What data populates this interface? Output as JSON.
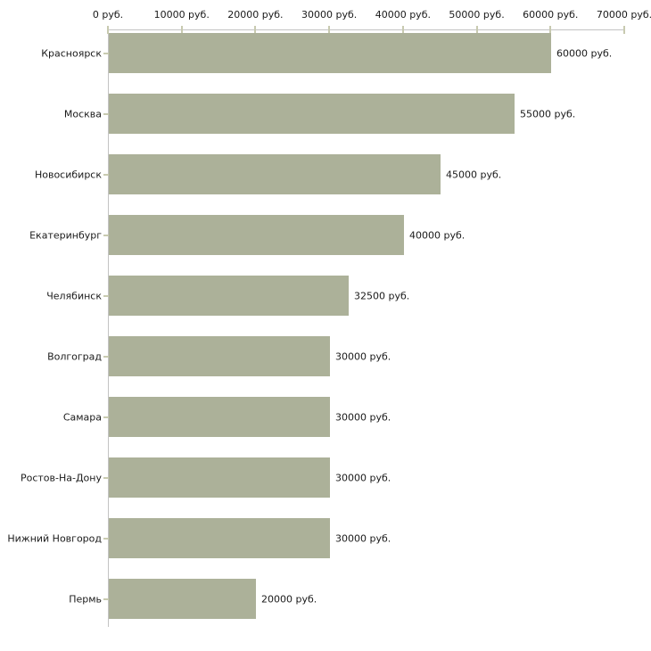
{
  "chart_data": {
    "type": "bar",
    "orientation": "horizontal",
    "title": "",
    "xlabel": "",
    "ylabel": "",
    "unit": "руб.",
    "categories": [
      "Красноярск",
      "Москва",
      "Новосибирск",
      "Екатеринбург",
      "Челябинск",
      "Волгоград",
      "Самара",
      "Ростов-На-Дону",
      "Нижний Новгород",
      "Пермь"
    ],
    "values": [
      60000,
      55000,
      45000,
      40000,
      32500,
      30000,
      30000,
      30000,
      30000,
      20000
    ],
    "value_labels": [
      "60000 руб.",
      "55000 руб.",
      "45000 руб.",
      "40000 руб.",
      "32500 руб.",
      "30000 руб.",
      "30000 руб.",
      "30000 руб.",
      "30000 руб.",
      "20000 руб."
    ],
    "xlim": [
      0,
      70000
    ],
    "xticks": [
      0,
      10000,
      20000,
      30000,
      40000,
      50000,
      60000,
      70000
    ],
    "xtick_labels": [
      "0 руб.",
      "10000 руб.",
      "20000 руб.",
      "30000 руб.",
      "40000 руб.",
      "50000 руб.",
      "60000 руб.",
      "70000 руб."
    ],
    "grid": "off",
    "legend": "none",
    "colors": {
      "bar": "#acb199",
      "axis_line": "#c3c3c3",
      "tick": "#c8cab0",
      "text": "#1a1a1a",
      "background": "#ffffff"
    }
  }
}
